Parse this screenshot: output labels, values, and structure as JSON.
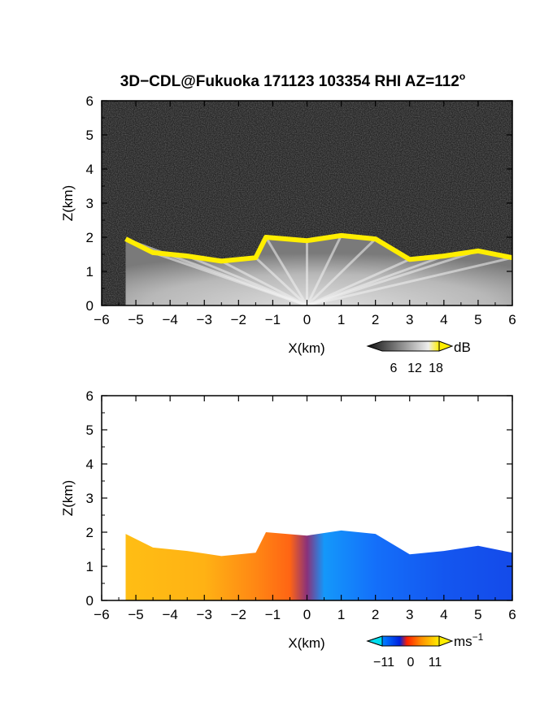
{
  "title_main": "3D−CDL@Fukuoka 171123 103354 RHI AZ=112",
  "title_sup": "o",
  "chart_data": [
    {
      "type": "heatmap",
      "panel": "intensity",
      "xlabel": "X(km)",
      "ylabel": "Z(km)",
      "xlim": [
        -6,
        6
      ],
      "ylim": [
        0,
        6
      ],
      "x_ticks": [
        "−6",
        "−5",
        "−4",
        "−3",
        "−2",
        "−1",
        "0",
        "1",
        "2",
        "3",
        "4",
        "5",
        "6"
      ],
      "y_ticks": [
        "0",
        "1",
        "2",
        "3",
        "4",
        "5",
        "6"
      ],
      "colorbar": {
        "unit": "dB",
        "ticks": [
          "6",
          "12",
          "18"
        ],
        "range": [
          0,
          21
        ]
      },
      "echo_top_km": [
        {
          "x": -5.3,
          "z": 1.95
        },
        {
          "x": -4.5,
          "z": 1.55
        },
        {
          "x": -3.5,
          "z": 1.45
        },
        {
          "x": -2.5,
          "z": 1.3
        },
        {
          "x": -1.5,
          "z": 1.4
        },
        {
          "x": -1.2,
          "z": 2.0
        },
        {
          "x": 0.0,
          "z": 1.9
        },
        {
          "x": 1.0,
          "z": 2.05
        },
        {
          "x": 2.0,
          "z": 1.95
        },
        {
          "x": 3.0,
          "z": 1.35
        },
        {
          "x": 4.0,
          "z": 1.45
        },
        {
          "x": 5.0,
          "z": 1.6
        },
        {
          "x": 6.0,
          "z": 1.4
        }
      ]
    },
    {
      "type": "heatmap",
      "panel": "velocity",
      "xlabel": "X(km)",
      "ylabel": "Z(km)",
      "xlim": [
        -6,
        6
      ],
      "ylim": [
        0,
        6
      ],
      "x_ticks": [
        "−6",
        "−5",
        "−4",
        "−3",
        "−2",
        "−1",
        "0",
        "1",
        "2",
        "3",
        "4",
        "5",
        "6"
      ],
      "y_ticks": [
        "0",
        "1",
        "2",
        "3",
        "4",
        "5",
        "6"
      ],
      "colorbar": {
        "unit": "ms",
        "unit_sup": "−1",
        "ticks": [
          "−11",
          "0",
          "11"
        ],
        "range": [
          -14,
          14
        ]
      },
      "velocity_profile_ms": [
        {
          "x": -5.3,
          "v": 10
        },
        {
          "x": -3.0,
          "v": 9
        },
        {
          "x": -1.5,
          "v": 6
        },
        {
          "x": -0.5,
          "v": 4
        },
        {
          "x": 0.0,
          "v": 0
        },
        {
          "x": 0.5,
          "v": -9
        },
        {
          "x": 2.0,
          "v": -6
        },
        {
          "x": 4.0,
          "v": -4
        },
        {
          "x": 6.0,
          "v": -3
        }
      ]
    }
  ]
}
